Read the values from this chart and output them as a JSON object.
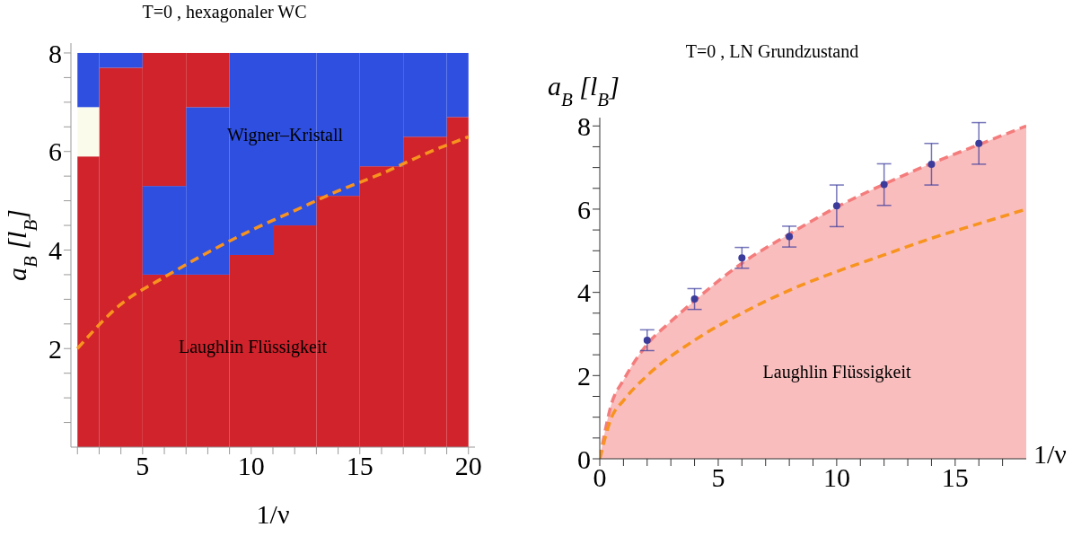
{
  "chart_data": [
    {
      "type": "bar",
      "stacked": true,
      "title": "T=0 , hexagonaler WC",
      "xlabel": "1/ν",
      "ylabel": "a$_{B}$ [l$_{B}$]",
      "x": [
        2.5,
        4,
        6,
        8,
        10,
        12,
        14,
        16,
        18,
        19.5
      ],
      "series": [
        {
          "values": [
            5.9,
            7.7,
            3.5,
            3.5,
            3.9,
            4.5,
            5.1,
            5.7,
            6.3,
            6.7
          ],
          "colors": [
            "#d0232c",
            "#d0232c",
            "#d0232c",
            "#d0232c",
            "#d0232c",
            "#d0232c",
            "#d0232c",
            "#d0232c",
            "#d0232c",
            "#d0232c"
          ]
        },
        {
          "values": [
            1.0,
            0.3,
            1.8,
            3.4,
            4.1,
            3.5,
            2.9,
            2.3,
            1.7,
            1.3
          ],
          "colors": [
            "#fbfbeb",
            "#2f4fe0",
            "#2f4fe0",
            "#2f4fe0",
            "#2f4fe0",
            "#2f4fe0",
            "#2f4fe0",
            "#2f4fe0",
            "#2f4fe0",
            "#2f4fe0"
          ]
        },
        {
          "values": [
            1.1,
            null,
            2.7,
            1.1,
            null,
            null,
            null,
            null,
            null,
            null
          ],
          "colors": [
            "#2f4fe0",
            null,
            "#d0232c",
            "#d0232c",
            null,
            null,
            null,
            null,
            null,
            null
          ]
        },
        {
          "type": "line",
          "x": [
            2,
            4,
            6,
            8,
            10,
            12,
            14,
            16,
            18,
            20
          ],
          "values": [
            2.0,
            2.9,
            3.45,
            3.95,
            4.4,
            4.8,
            5.2,
            5.55,
            5.95,
            6.3
          ],
          "color": "#f7931e",
          "line_style": "dashed",
          "marker": "none"
        }
      ],
      "xlim": [
        1.7,
        20.3
      ],
      "ylim": [
        0,
        8.2
      ],
      "xticks": [
        {
          "value": 2,
          "label": null
        },
        {
          "value": 3,
          "label": null
        },
        {
          "value": 4,
          "label": null
        },
        5,
        {
          "value": 6,
          "label": null
        },
        {
          "value": 7,
          "label": null
        },
        {
          "value": 8,
          "label": null
        },
        {
          "value": 9,
          "label": null
        },
        10,
        {
          "value": 11,
          "label": null
        },
        {
          "value": 12,
          "label": null
        },
        {
          "value": 13,
          "label": null
        },
        {
          "value": 14,
          "label": null
        },
        15,
        {
          "value": 16,
          "label": null
        },
        {
          "value": 17,
          "label": null
        },
        {
          "value": 18,
          "label": null
        },
        {
          "value": 19,
          "label": null
        },
        20
      ],
      "yticks": [
        {
          "value": 0.5,
          "label": null
        },
        {
          "value": 1,
          "label": null
        },
        {
          "value": 1.5,
          "label": null
        },
        2,
        {
          "value": 2.5,
          "label": null
        },
        {
          "value": 3,
          "label": null
        },
        {
          "value": 3.5,
          "label": null
        },
        4,
        {
          "value": 4.5,
          "label": null
        },
        {
          "value": 5,
          "label": null
        },
        {
          "value": 5.5,
          "label": null
        },
        6,
        {
          "value": 6.5,
          "label": null
        },
        {
          "value": 7,
          "label": null
        },
        {
          "value": 7.5,
          "label": null
        },
        8
      ],
      "annotations": [
        "Wigner–Kristall",
        "Laughlin Flüssigkeit"
      ]
    },
    {
      "type": "area",
      "title": "T=0 , LN Grundzustand",
      "xlabel": "1/ν",
      "ylabel": "a$_{B}$ [l$_{B}$]",
      "series": [
        {
          "x": [
            0,
            0.5,
            1,
            2,
            3,
            4,
            6,
            8,
            10,
            12,
            14,
            16,
            18
          ],
          "values": [
            0,
            1.33,
            1.89,
            2.75,
            3.3,
            3.8,
            4.7,
            5.4,
            6.05,
            6.6,
            7.1,
            7.55,
            8.0
          ],
          "color": "#f47c7c",
          "line_style": "dashed",
          "marker": "none"
        },
        {
          "type": "line",
          "x": [
            0,
            0.5,
            1,
            2,
            4,
            6,
            8,
            10,
            12,
            14,
            16,
            18
          ],
          "values": [
            0,
            1.0,
            1.4,
            2.0,
            2.85,
            3.5,
            4.05,
            4.5,
            4.9,
            5.3,
            5.65,
            6.0
          ],
          "color": "#f7931e",
          "line_style": "dashed",
          "marker": "none"
        },
        {
          "type": "scatter",
          "x": [
            2,
            4,
            6,
            8,
            10,
            12,
            14,
            16
          ],
          "values": [
            2.85,
            3.84,
            4.83,
            5.34,
            6.08,
            6.59,
            7.08,
            7.58
          ],
          "errors": [
            0.25,
            0.25,
            0.25,
            0.25,
            0.5,
            0.5,
            0.5,
            0.5
          ],
          "color": "#3b3b9c",
          "marker": "circle"
        }
      ],
      "xlim": [
        0,
        18
      ],
      "ylim": [
        0,
        8.2
      ],
      "xticks": [
        0,
        {
          "value": 1,
          "label": null
        },
        {
          "value": 2,
          "label": null
        },
        {
          "value": 3,
          "label": null
        },
        {
          "value": 4,
          "label": null
        },
        5,
        {
          "value": 6,
          "label": null
        },
        {
          "value": 7,
          "label": null
        },
        {
          "value": 8,
          "label": null
        },
        {
          "value": 9,
          "label": null
        },
        10,
        {
          "value": 11,
          "label": null
        },
        {
          "value": 12,
          "label": null
        },
        {
          "value": 13,
          "label": null
        },
        {
          "value": 14,
          "label": null
        },
        15,
        {
          "value": 16,
          "label": null
        },
        {
          "value": 17,
          "label": null
        }
      ],
      "yticks": [
        0,
        {
          "value": 0.5,
          "label": null
        },
        {
          "value": 1,
          "label": null
        },
        {
          "value": 1.5,
          "label": null
        },
        2,
        {
          "value": 2.5,
          "label": null
        },
        {
          "value": 3,
          "label": null
        },
        {
          "value": 3.5,
          "label": null
        },
        4,
        {
          "value": 4.5,
          "label": null
        },
        {
          "value": 5,
          "label": null
        },
        {
          "value": 5.5,
          "label": null
        },
        6,
        {
          "value": 6.5,
          "label": null
        },
        {
          "value": 7,
          "label": null
        },
        {
          "value": 7.5,
          "label": null
        },
        8
      ],
      "annotations": [
        "Laughlin Flüssigkeit"
      ]
    }
  ]
}
